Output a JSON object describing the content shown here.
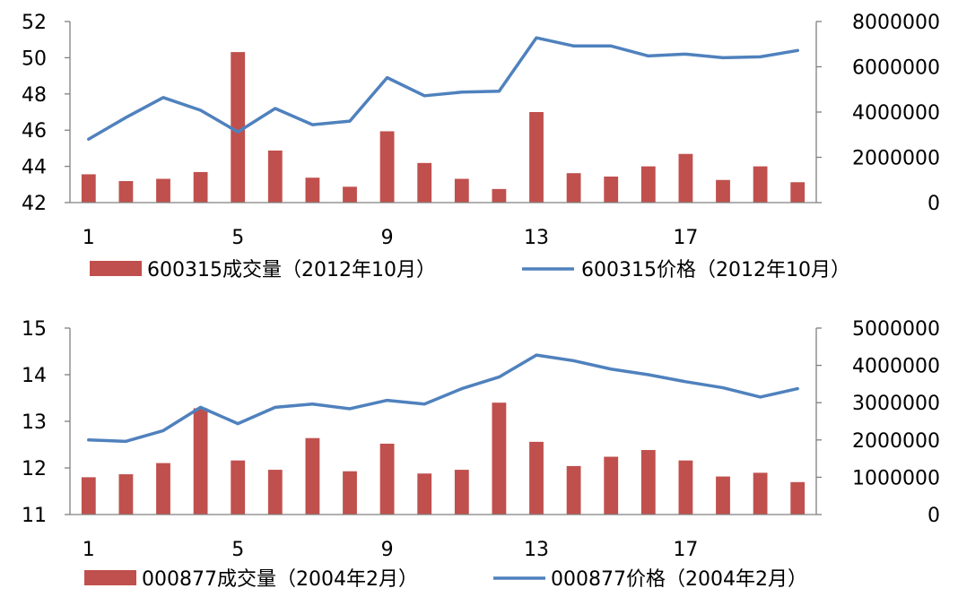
{
  "chart_data": [
    {
      "type": "bar+line",
      "title": "",
      "categories": [
        1,
        2,
        3,
        4,
        5,
        6,
        7,
        8,
        9,
        10,
        11,
        12,
        13,
        14,
        15,
        16,
        17,
        18,
        19,
        20
      ],
      "x_tick_labels": [
        "1",
        "5",
        "9",
        "13",
        "17"
      ],
      "x_tick_positions": [
        1,
        5,
        9,
        13,
        17
      ],
      "y_left": {
        "min": 42,
        "max": 52,
        "ticks": [
          42,
          44,
          46,
          48,
          50,
          52
        ]
      },
      "y_right": {
        "min": 0,
        "max": 8000000,
        "ticks": [
          0,
          2000000,
          4000000,
          6000000,
          8000000
        ]
      },
      "series": [
        {
          "name": "600315成交量（2012年10月）",
          "type": "bar",
          "axis": "right",
          "color": "#C0504D",
          "values": [
            1250000,
            950000,
            1050000,
            1350000,
            6650000,
            2300000,
            1100000,
            700000,
            3150000,
            1750000,
            1050000,
            600000,
            4000000,
            1300000,
            1150000,
            1600000,
            2150000,
            1000000,
            1600000,
            900000
          ]
        },
        {
          "name": "600315价格（2012年10月）",
          "type": "line",
          "axis": "left",
          "color": "#4F81BD",
          "values": [
            45.5,
            46.7,
            47.8,
            47.1,
            45.9,
            47.2,
            46.3,
            46.5,
            48.9,
            47.9,
            48.1,
            48.15,
            51.1,
            50.65,
            50.65,
            50.1,
            50.2,
            50.0,
            50.05,
            50.4
          ]
        }
      ]
    },
    {
      "type": "bar+line",
      "title": "",
      "categories": [
        1,
        2,
        3,
        4,
        5,
        6,
        7,
        8,
        9,
        10,
        11,
        12,
        13,
        14,
        15,
        16,
        17,
        18,
        19,
        20
      ],
      "x_tick_labels": [
        "1",
        "5",
        "9",
        "13",
        "17"
      ],
      "x_tick_positions": [
        1,
        5,
        9,
        13,
        17
      ],
      "y_left": {
        "min": 11,
        "max": 15,
        "ticks": [
          11,
          12,
          13,
          14,
          15
        ]
      },
      "y_right": {
        "min": 0,
        "max": 5000000,
        "ticks": [
          0,
          1000000,
          2000000,
          3000000,
          4000000,
          5000000
        ]
      },
      "series": [
        {
          "name": "000877成交量（2004年2月）",
          "type": "bar",
          "axis": "right",
          "color": "#C0504D",
          "values": [
            1000000,
            1080000,
            1380000,
            2850000,
            1450000,
            1200000,
            2050000,
            1160000,
            1900000,
            1100000,
            1200000,
            3000000,
            1950000,
            1300000,
            1550000,
            1730000,
            1450000,
            1020000,
            1120000,
            870000
          ]
        },
        {
          "name": "000877价格（2004年2月）",
          "type": "line",
          "axis": "left",
          "color": "#4F81BD",
          "values": [
            12.6,
            12.57,
            12.8,
            13.3,
            12.95,
            13.3,
            13.37,
            13.27,
            13.45,
            13.37,
            13.7,
            13.95,
            14.42,
            14.3,
            14.12,
            14.0,
            13.85,
            13.72,
            13.52,
            13.7
          ]
        }
      ]
    }
  ]
}
